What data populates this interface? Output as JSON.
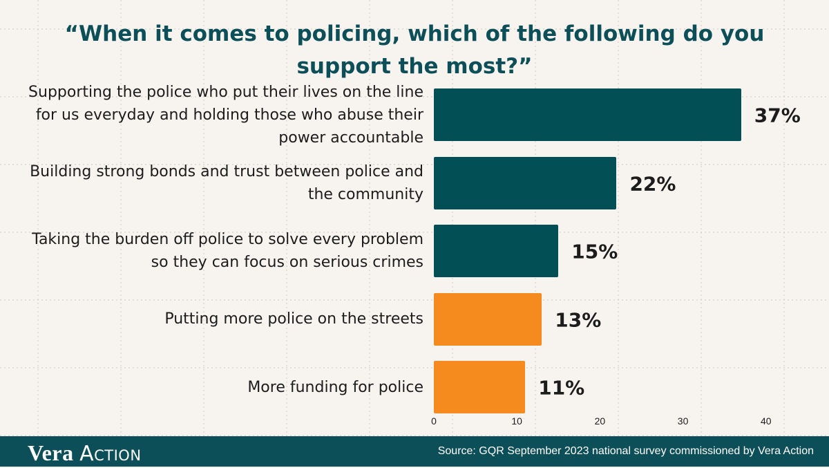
{
  "chart_data": {
    "type": "bar",
    "orientation": "horizontal",
    "title": "“When it comes to policing, which of the following do you support the most?”",
    "categories": [
      "Supporting the police who put their lives on the line for us everyday and holding those who abuse their power accountable",
      "Building strong bonds and trust between police and the community",
      "Taking the burden off police to solve every problem so they can focus on serious crimes",
      "Putting more police on the streets",
      "More funding for police"
    ],
    "values": [
      37,
      22,
      15,
      13,
      11
    ],
    "value_labels": [
      "37%",
      "22%",
      "15%",
      "13%",
      "11%"
    ],
    "bar_colors": [
      "#034f56",
      "#034f56",
      "#034f56",
      "#f58a1f",
      "#f58a1f"
    ],
    "xlim": [
      0,
      40
    ],
    "xticks": [
      0,
      10,
      20,
      30,
      40
    ],
    "grid": true
  },
  "footer": {
    "logo_word_1": "Vera",
    "logo_word_2": "Action",
    "source": "Source: GQR September 2023 national survey commissioned by Vera Action"
  },
  "colors": {
    "background": "#f7f4ef",
    "footer": "#0d4f58",
    "title": "#0d4f58"
  }
}
